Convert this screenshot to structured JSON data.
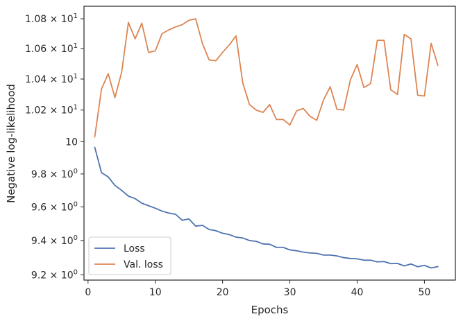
{
  "chart_data": {
    "type": "line",
    "xlabel": "Epochs",
    "ylabel": "Negative log-likelihood",
    "xlim": [
      -0.6,
      54.6
    ],
    "ylim": [
      9.17,
      10.885
    ],
    "yscale": "log",
    "grid": false,
    "legend_position": "lower-left",
    "x_ticks": [
      0,
      10,
      20,
      30,
      40,
      50
    ],
    "x_tick_labels": [
      "0",
      "10",
      "20",
      "30",
      "40",
      "50"
    ],
    "y_ticks": [
      9.2,
      9.4,
      9.6,
      9.8,
      10.0,
      10.2,
      10.4,
      10.6,
      10.8
    ],
    "y_tick_labels": [
      {
        "base": "9.2 × 10",
        "exp": "0"
      },
      {
        "base": "9.4 × 10",
        "exp": "0"
      },
      {
        "base": "9.6 × 10",
        "exp": "0"
      },
      {
        "base": "9.8 × 10",
        "exp": "0"
      },
      {
        "base": "10",
        "exp": "1"
      },
      {
        "base": "1.02 × 10",
        "exp": "1"
      },
      {
        "base": "1.04 × 10",
        "exp": "1"
      },
      {
        "base": "1.06 × 10",
        "exp": "1"
      },
      {
        "base": "1.08 × 10",
        "exp": "1"
      }
    ],
    "x": [
      1,
      2,
      3,
      4,
      5,
      6,
      7,
      8,
      9,
      10,
      11,
      12,
      13,
      14,
      15,
      16,
      17,
      18,
      19,
      20,
      21,
      22,
      23,
      24,
      25,
      26,
      27,
      28,
      29,
      30,
      31,
      32,
      33,
      34,
      35,
      36,
      37,
      38,
      39,
      40,
      41,
      42,
      43,
      44,
      45,
      46,
      47,
      48,
      49,
      50,
      51,
      52
    ],
    "series": [
      {
        "name": "Loss",
        "color": "#4c72b0",
        "values": [
          9.965,
          9.808,
          9.782,
          9.73,
          9.7,
          9.665,
          9.65,
          9.622,
          9.607,
          9.592,
          9.575,
          9.563,
          9.556,
          9.52,
          9.528,
          9.485,
          9.49,
          9.465,
          9.458,
          9.443,
          9.435,
          9.42,
          9.415,
          9.4,
          9.395,
          9.38,
          9.378,
          9.36,
          9.36,
          9.345,
          9.34,
          9.332,
          9.327,
          9.325,
          9.315,
          9.315,
          9.31,
          9.3,
          9.295,
          9.293,
          9.285,
          9.285,
          9.275,
          9.277,
          9.265,
          9.266,
          9.252,
          9.263,
          9.247,
          9.255,
          9.24,
          9.248
        ]
      },
      {
        "name": "Val. loss",
        "color": "#dd8452",
        "values": [
          10.03,
          10.335,
          10.435,
          10.28,
          10.445,
          10.775,
          10.665,
          10.77,
          10.575,
          10.585,
          10.7,
          10.725,
          10.745,
          10.76,
          10.79,
          10.8,
          10.635,
          10.525,
          10.52,
          10.575,
          10.625,
          10.685,
          10.375,
          10.235,
          10.2,
          10.185,
          10.235,
          10.14,
          10.14,
          10.105,
          10.195,
          10.21,
          10.16,
          10.135,
          10.265,
          10.35,
          10.205,
          10.2,
          10.395,
          10.495,
          10.345,
          10.37,
          10.655,
          10.655,
          10.33,
          10.3,
          10.695,
          10.665,
          10.295,
          10.29,
          10.635,
          10.49
        ]
      }
    ]
  }
}
